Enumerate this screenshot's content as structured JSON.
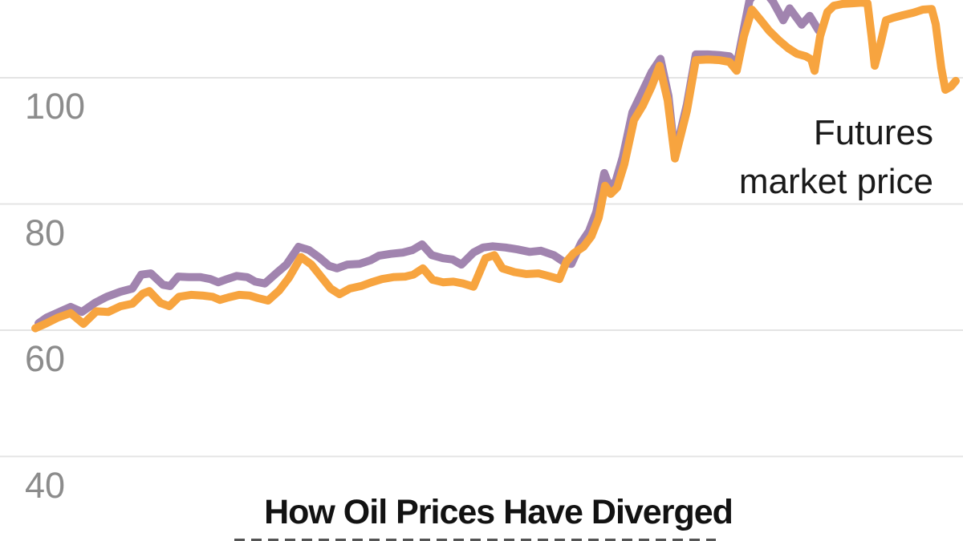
{
  "chart_data": {
    "type": "line",
    "title": "How Oil Prices Have Diverged",
    "grid": true,
    "x_axis": {
      "labels_visible": false
    },
    "y_axis": {
      "ticks": [
        100,
        80,
        60,
        40
      ],
      "ylim": [
        38,
        114
      ]
    },
    "annotation": {
      "lines": [
        "Futures",
        "market price"
      ],
      "color": "#1a1a1a"
    },
    "gridline_color": "#e4e4e4",
    "tick_label_color": "#8c8c8c",
    "series": [
      {
        "id": "purple-line",
        "label": null,
        "color": "#A184AF",
        "points": [
          [
            48,
            61.1
          ],
          [
            58,
            62.0
          ],
          [
            72,
            62.8
          ],
          [
            88,
            63.7
          ],
          [
            102,
            62.9
          ],
          [
            118,
            64.3
          ],
          [
            133,
            65.3
          ],
          [
            150,
            66.1
          ],
          [
            165,
            66.6
          ],
          [
            176,
            68.8
          ],
          [
            188,
            69.0
          ],
          [
            203,
            67.2
          ],
          [
            212,
            67.0
          ],
          [
            222,
            68.5
          ],
          [
            235,
            68.4
          ],
          [
            250,
            68.4
          ],
          [
            262,
            68.1
          ],
          [
            272,
            67.6
          ],
          [
            283,
            68.1
          ],
          [
            295,
            68.6
          ],
          [
            308,
            68.4
          ],
          [
            318,
            67.7
          ],
          [
            330,
            67.4
          ],
          [
            345,
            69.1
          ],
          [
            357,
            70.4
          ],
          [
            372,
            73.2
          ],
          [
            385,
            72.7
          ],
          [
            398,
            71.5
          ],
          [
            410,
            70.2
          ],
          [
            420,
            69.8
          ],
          [
            433,
            70.4
          ],
          [
            448,
            70.5
          ],
          [
            462,
            71.1
          ],
          [
            472,
            71.8
          ],
          [
            487,
            72.1
          ],
          [
            502,
            72.3
          ],
          [
            514,
            72.7
          ],
          [
            526,
            73.6
          ],
          [
            538,
            71.9
          ],
          [
            552,
            71.4
          ],
          [
            564,
            71.2
          ],
          [
            575,
            70.4
          ],
          [
            590,
            72.3
          ],
          [
            602,
            73.1
          ],
          [
            614,
            73.3
          ],
          [
            630,
            73.1
          ],
          [
            645,
            72.8
          ],
          [
            660,
            72.4
          ],
          [
            674,
            72.6
          ],
          [
            690,
            71.9
          ],
          [
            704,
            70.7
          ],
          [
            712,
            70.5
          ],
          [
            724,
            73.8
          ],
          [
            734,
            75.7
          ],
          [
            743,
            78.7
          ],
          [
            753,
            84.9
          ],
          [
            759,
            82.9
          ],
          [
            767,
            83.5
          ],
          [
            776,
            87.4
          ],
          [
            788,
            94.5
          ],
          [
            800,
            97.7
          ],
          [
            812,
            100.9
          ],
          [
            823,
            103.0
          ],
          [
            833,
            97.1
          ],
          [
            841,
            87.7
          ],
          [
            856,
            95.8
          ],
          [
            867,
            103.7
          ],
          [
            882,
            103.7
          ],
          [
            896,
            103.6
          ],
          [
            909,
            103.4
          ],
          [
            918,
            102.0
          ],
          [
            926,
            107.2
          ],
          [
            934,
            112.3
          ],
          [
            942,
            113.5
          ],
          [
            950,
            114.0
          ],
          [
            956,
            113.2
          ],
          [
            963,
            112.1
          ],
          [
            976,
            109.1
          ],
          [
            984,
            111.0
          ],
          [
            999,
            108.4
          ],
          [
            1009,
            109.8
          ],
          [
            1020,
            107.5
          ]
        ]
      },
      {
        "id": "orange-line",
        "label": "Futures market price",
        "color": "#F7A43F",
        "points": [
          [
            44,
            60.3
          ],
          [
            58,
            61.1
          ],
          [
            72,
            62.0
          ],
          [
            88,
            62.7
          ],
          [
            104,
            61.0
          ],
          [
            120,
            63.0
          ],
          [
            135,
            62.9
          ],
          [
            150,
            63.8
          ],
          [
            165,
            64.2
          ],
          [
            178,
            65.8
          ],
          [
            186,
            66.2
          ],
          [
            200,
            64.3
          ],
          [
            211,
            63.8
          ],
          [
            223,
            65.3
          ],
          [
            238,
            65.6
          ],
          [
            252,
            65.5
          ],
          [
            265,
            65.3
          ],
          [
            274,
            64.8
          ],
          [
            285,
            65.2
          ],
          [
            298,
            65.6
          ],
          [
            311,
            65.5
          ],
          [
            321,
            65.1
          ],
          [
            334,
            64.7
          ],
          [
            348,
            66.3
          ],
          [
            360,
            68.3
          ],
          [
            375,
            71.6
          ],
          [
            388,
            70.4
          ],
          [
            400,
            68.5
          ],
          [
            412,
            66.6
          ],
          [
            423,
            65.7
          ],
          [
            436,
            66.6
          ],
          [
            450,
            67.0
          ],
          [
            463,
            67.6
          ],
          [
            476,
            68.1
          ],
          [
            490,
            68.4
          ],
          [
            505,
            68.5
          ],
          [
            515,
            68.8
          ],
          [
            527,
            69.8
          ],
          [
            539,
            68.0
          ],
          [
            552,
            67.6
          ],
          [
            565,
            67.7
          ],
          [
            577,
            67.4
          ],
          [
            590,
            66.9
          ],
          [
            605,
            71.4
          ],
          [
            616,
            71.9
          ],
          [
            626,
            69.8
          ],
          [
            641,
            69.2
          ],
          [
            656,
            68.9
          ],
          [
            671,
            69.0
          ],
          [
            686,
            68.5
          ],
          [
            697,
            68.1
          ],
          [
            706,
            70.9
          ],
          [
            715,
            72.2
          ],
          [
            727,
            73.2
          ],
          [
            737,
            74.9
          ],
          [
            746,
            77.8
          ],
          [
            754,
            82.9
          ],
          [
            761,
            81.6
          ],
          [
            769,
            82.6
          ],
          [
            778,
            86.3
          ],
          [
            790,
            93.3
          ],
          [
            801,
            95.6
          ],
          [
            812,
            98.6
          ],
          [
            822,
            101.9
          ],
          [
            832,
            96.4
          ],
          [
            841,
            87.2
          ],
          [
            856,
            94.8
          ],
          [
            867,
            102.8
          ],
          [
            882,
            102.9
          ],
          [
            896,
            102.8
          ],
          [
            909,
            102.5
          ],
          [
            918,
            101.1
          ],
          [
            927,
            106.6
          ],
          [
            937,
            110.8
          ],
          [
            948,
            109.1
          ],
          [
            958,
            107.5
          ],
          [
            970,
            106.0
          ],
          [
            982,
            104.7
          ],
          [
            993,
            103.8
          ],
          [
            1004,
            103.4
          ],
          [
            1011,
            102.9
          ],
          [
            1015,
            101.1
          ],
          [
            1022,
            106.6
          ],
          [
            1031,
            110.4
          ],
          [
            1039,
            111.4
          ],
          [
            1050,
            111.7
          ],
          [
            1062,
            111.8
          ],
          [
            1074,
            111.9
          ],
          [
            1081,
            111.8
          ],
          [
            1086,
            106.6
          ],
          [
            1090,
            101.9
          ],
          [
            1097,
            105.3
          ],
          [
            1104,
            109.1
          ],
          [
            1113,
            109.5
          ],
          [
            1125,
            109.9
          ],
          [
            1138,
            110.3
          ],
          [
            1150,
            110.8
          ],
          [
            1161,
            110.9
          ],
          [
            1166,
            108.5
          ],
          [
            1173,
            101.5
          ],
          [
            1178,
            98.1
          ],
          [
            1185,
            98.6
          ],
          [
            1191,
            99.5
          ]
        ]
      }
    ]
  }
}
